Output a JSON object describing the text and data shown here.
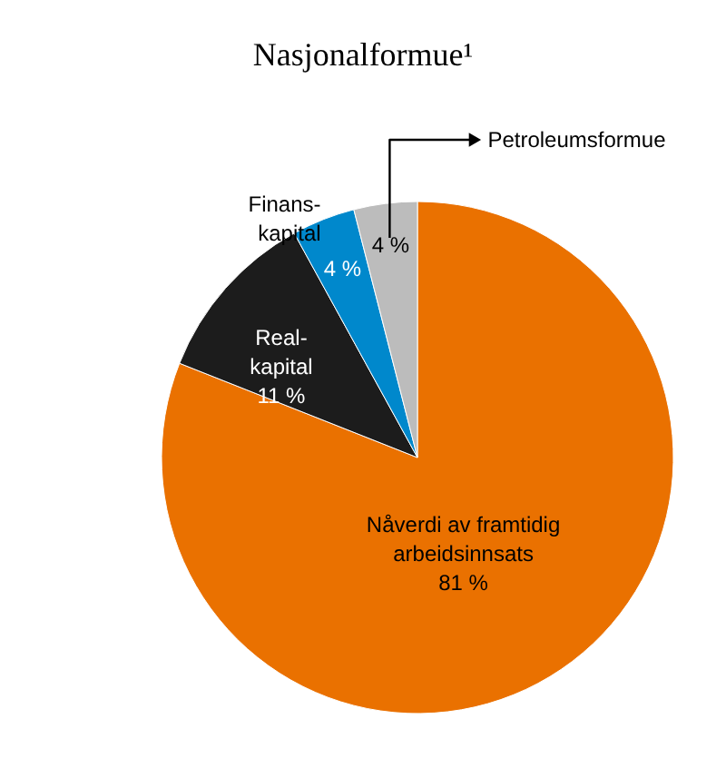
{
  "chart_data": {
    "type": "pie",
    "title": "Nasjonalformue¹",
    "categories": [
      "Nåverdi av framtidig\narbeidsinnsats",
      "Real-\nkapital",
      "Finans-\nkapital",
      "Petroleumsformue"
    ],
    "values": [
      81,
      11,
      4,
      4
    ],
    "value_labels": [
      "81 %",
      "11 %",
      "4 %",
      "4 %"
    ],
    "colors": [
      "#ea7100",
      "#1c1c1c",
      "#0088cc",
      "#bcbcbc"
    ]
  }
}
